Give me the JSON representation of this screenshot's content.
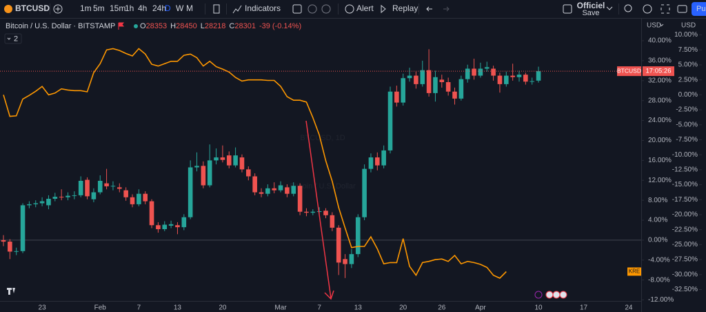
{
  "toolbar": {
    "symbol": "BTCUSD",
    "intervals": [
      "1m",
      "5m",
      "15m",
      "1h",
      "4h",
      "24h",
      "D",
      "W",
      "M"
    ],
    "active_interval": "D",
    "indicators": "Indicators",
    "alert": "Alert",
    "replay": "Replay",
    "layout_name": "Officiel",
    "layout_status": "Save",
    "publish": "Pu"
  },
  "chart_data": {
    "type": "candlestick",
    "title": "Bitcoin / U.S. Dollar · BITSTAMP",
    "ohlc_legend": [
      {
        "label": "O",
        "value": 28353
      },
      {
        "label": "H",
        "value": 28450
      },
      {
        "label": "L",
        "value": 28218
      },
      {
        "label": "C",
        "value": 28301
      }
    ],
    "change": "-39 (-0.14%)",
    "indicator_count": 2,
    "watermark": {
      "symbol": "BTCUSD, 1D",
      "description": "Bitcoin / U.S. Dollar"
    },
    "countdown": "17:05:26",
    "y_unit": "USD",
    "y2_unit": "USD",
    "grid": false,
    "up_color": "#26a69a",
    "down_color": "#ef5350",
    "categories": [
      null,
      null,
      null,
      null,
      null,
      null,
      "23",
      null,
      null,
      null,
      null,
      null,
      null,
      null,
      null,
      "Feb",
      null,
      null,
      null,
      null,
      null,
      "7",
      null,
      null,
      null,
      null,
      null,
      "13",
      null,
      null,
      null,
      null,
      null,
      null,
      "20",
      null,
      null,
      null,
      null,
      null,
      null,
      null,
      null,
      "Mar",
      null,
      null,
      null,
      null,
      null,
      "7",
      null,
      null,
      null,
      null,
      null,
      "13",
      null,
      null,
      null,
      null,
      null,
      null,
      "20",
      null,
      null,
      null,
      null,
      null,
      "26",
      null,
      null,
      null,
      null,
      null,
      "Apr",
      null,
      null,
      null,
      null,
      null,
      null,
      null,
      null,
      "10",
      null,
      null,
      null,
      null,
      null,
      null,
      "17",
      null,
      null,
      null,
      null,
      null,
      null,
      "24"
    ],
    "series": [
      {
        "name": "BTCUSD",
        "type": "candlestick",
        "color": "#ef5350",
        "open": [
          0,
          -0.3,
          -2.3,
          -2.2,
          7.0,
          7.2,
          7.4,
          7.0,
          8.3,
          8.7,
          8.6,
          8.9,
          9.0,
          12.1,
          8.2,
          9.6,
          11.4,
          10.8,
          10.6,
          10.0,
          8.6,
          7.2,
          9.3,
          7.8,
          3.0,
          2.2,
          2.9,
          3.0,
          2.6,
          4.6,
          14.6,
          14.9,
          11.0,
          16.0,
          16.6,
          17.0,
          15.0,
          16.6,
          14.2,
          12.8,
          9.6,
          9.3,
          10.4,
          10.0,
          10.6,
          9.3,
          10.9,
          5.7,
          5.5,
          5.7,
          5.9,
          5.0,
          2.5,
          -3.8,
          -4.8,
          -2.8,
          4.6,
          14.3,
          16.6,
          15.0,
          18.0,
          29.8,
          27.6,
          32.5,
          33.0,
          31.3,
          34.1,
          29.5,
          32.2,
          31.7,
          29.8,
          28.4,
          32.3,
          34.4,
          33.0,
          34.4,
          34.4,
          33.0,
          31.3,
          33.0,
          32.7,
          33.2,
          31.8,
          32.0,
          null,
          null,
          null,
          null,
          null,
          null,
          null,
          null,
          null,
          null,
          null,
          null,
          null,
          null
        ],
        "high": [
          1.0,
          0.2,
          -1.5,
          7.4,
          7.8,
          8.0,
          8.6,
          9.0,
          9.5,
          10.2,
          9.6,
          9.8,
          12.8,
          12.6,
          10.4,
          13.0,
          14.3,
          11.8,
          11.4,
          10.6,
          9.2,
          10.2,
          9.8,
          8.2,
          3.6,
          3.8,
          3.9,
          3.6,
          5.2,
          16.0,
          17.6,
          15.8,
          19.2,
          18.4,
          19.0,
          17.8,
          18.6,
          17.2,
          14.8,
          13.4,
          10.4,
          11.2,
          11.6,
          11.8,
          11.2,
          11.6,
          11.4,
          6.4,
          6.2,
          6.6,
          6.4,
          5.6,
          3.0,
          -2.8,
          -1.8,
          5.2,
          15.2,
          17.4,
          17.6,
          19.0,
          30.8,
          31.0,
          33.4,
          34.6,
          33.8,
          36.0,
          38.3,
          34.0,
          33.2,
          32.6,
          30.6,
          33.0,
          35.2,
          36.4,
          35.6,
          35.8,
          35.0,
          33.6,
          33.8,
          35.4,
          34.0,
          33.6,
          32.6,
          34.8,
          null,
          null,
          null,
          null,
          null,
          null,
          null,
          null,
          null,
          null,
          null,
          null,
          null,
          null
        ],
        "low": [
          -1.2,
          -3.8,
          -3.0,
          -2.6,
          6.4,
          6.6,
          6.8,
          6.2,
          7.8,
          8.0,
          8.0,
          8.2,
          8.6,
          8.2,
          7.6,
          9.2,
          10.2,
          10.0,
          9.6,
          7.9,
          6.6,
          6.8,
          7.2,
          2.4,
          1.5,
          1.8,
          2.4,
          1.2,
          2.0,
          4.2,
          13.8,
          10.4,
          10.6,
          15.2,
          15.6,
          14.4,
          14.6,
          13.6,
          12.0,
          9.0,
          8.6,
          8.8,
          9.4,
          9.6,
          8.6,
          8.8,
          5.0,
          4.8,
          5.0,
          5.2,
          4.4,
          1.8,
          -7.0,
          -7.6,
          -5.6,
          -3.4,
          4.0,
          13.6,
          14.0,
          14.4,
          17.4,
          26.8,
          27.0,
          31.8,
          30.4,
          30.8,
          28.8,
          27.8,
          30.6,
          29.0,
          27.2,
          28.0,
          31.6,
          32.2,
          32.6,
          33.8,
          32.0,
          29.6,
          30.8,
          32.0,
          31.8,
          31.2,
          31.2,
          31.6,
          null,
          null,
          null,
          null,
          null,
          null,
          null,
          null,
          null,
          null,
          null,
          null,
          null,
          null
        ],
        "close": [
          -0.3,
          -2.3,
          -2.2,
          7.0,
          7.2,
          7.4,
          7.8,
          8.3,
          8.7,
          8.6,
          8.9,
          9.0,
          11.9,
          8.8,
          9.6,
          11.9,
          10.8,
          10.9,
          10.3,
          8.6,
          7.2,
          9.3,
          7.8,
          3.0,
          2.2,
          3.1,
          3.2,
          2.6,
          4.6,
          14.6,
          14.9,
          11.0,
          16.0,
          16.6,
          16.1,
          15.0,
          17.0,
          14.2,
          12.8,
          9.6,
          9.3,
          10.4,
          10.0,
          11.0,
          9.3,
          10.9,
          5.7,
          5.5,
          5.7,
          5.8,
          5.0,
          2.5,
          -4.5,
          -4.8,
          -2.8,
          4.6,
          14.3,
          16.6,
          15.0,
          18.0,
          29.8,
          27.6,
          32.5,
          33.0,
          31.3,
          34.1,
          29.5,
          32.7,
          31.7,
          29.8,
          28.4,
          32.3,
          34.4,
          33.0,
          34.4,
          34.7,
          33.0,
          31.3,
          33.0,
          32.7,
          33.2,
          31.8,
          31.9,
          33.9,
          null,
          null,
          null,
          null,
          null,
          null,
          null,
          null,
          null,
          null,
          null,
          null,
          null,
          null
        ]
      },
      {
        "name": "KRE",
        "type": "line",
        "color": "#ff9800",
        "axis": "y2",
        "values": [
          0,
          -3.6,
          -3.5,
          -0.7,
          -0.1,
          0.6,
          1.4,
          0,
          0.3,
          1.0,
          0.8,
          0.7,
          0.7,
          0.5,
          3.7,
          5.2,
          7.5,
          7.7,
          7.4,
          6.9,
          6.5,
          7.7,
          6.8,
          5.1,
          4.8,
          5.2,
          5.6,
          5.6,
          6.6,
          6.8,
          6.2,
          4.8,
          5.6,
          4.7,
          4.3,
          3.8,
          2.9,
          2.3,
          2.5,
          2.5,
          2.5,
          2.4,
          2.4,
          1.4,
          -0.3,
          -0.9,
          -0.9,
          -1.2,
          -3.8,
          -6.7,
          -11.0,
          -14.4,
          -18.8,
          -22.2,
          -25.5,
          -25.3,
          -25.3,
          -23.7,
          -25.7,
          -28.2,
          -28.0,
          -28.0,
          -24.0,
          -28.6,
          -30.1,
          -28.0,
          -27.8,
          -27.5,
          -27.4,
          -27.8,
          -26.8,
          -28.2,
          -27.8,
          -28.0,
          -28.3,
          -28.8,
          -30.1,
          -30.6,
          -29.5,
          null,
          null,
          null,
          null,
          null,
          null,
          null,
          null,
          null,
          null,
          null,
          null,
          null,
          null,
          null,
          null,
          null,
          null,
          null
        ]
      }
    ],
    "ylim": [
      -12.2,
      44.3
    ],
    "yticks": [
      {
        "value": 40,
        "label": "40.00%"
      },
      {
        "value": 36,
        "label": "36.00%"
      },
      {
        "value": 32,
        "label": "32.00%"
      },
      {
        "value": 28,
        "label": "28.00%"
      },
      {
        "value": 24,
        "label": "24.00%"
      },
      {
        "value": 20,
        "label": "20.00%"
      },
      {
        "value": 16,
        "label": "16.00%"
      },
      {
        "value": 12,
        "label": "12.00%"
      },
      {
        "value": 8,
        "label": "8.00%"
      },
      {
        "value": 4,
        "label": "4.00%"
      },
      {
        "value": 0,
        "label": "0.00%"
      },
      {
        "value": -4,
        "label": "-4.00%"
      },
      {
        "value": -8,
        "label": "-8.00%"
      },
      {
        "value": -12,
        "label": "-12.00%"
      }
    ],
    "y2lim": [
      -34.4,
      12.6
    ],
    "y2ticks": [
      {
        "value": 10,
        "label": "10.00%"
      },
      {
        "value": 7.5,
        "label": "7.50%"
      },
      {
        "value": 5,
        "label": "5.00%"
      },
      {
        "value": 2.5,
        "label": "2.50%"
      },
      {
        "value": 0,
        "label": "0.00%"
      },
      {
        "value": -2.5,
        "label": "-2.50%"
      },
      {
        "value": -5,
        "label": "-5.00%"
      },
      {
        "value": -7.5,
        "label": "-7.50%"
      },
      {
        "value": -10,
        "label": "-10.00%"
      },
      {
        "value": -12.5,
        "label": "-12.50%"
      },
      {
        "value": -15,
        "label": "-15.00%"
      },
      {
        "value": -17.5,
        "label": "-17.50%"
      },
      {
        "value": -20,
        "label": "-20.00%"
      },
      {
        "value": -22.5,
        "label": "-22.50%"
      },
      {
        "value": -25,
        "label": "-25.00%"
      },
      {
        "value": -27.5,
        "label": "-27.50%"
      },
      {
        "value": -30,
        "label": "-30.00%"
      },
      {
        "value": -32.5,
        "label": "-32.50%"
      }
    ]
  }
}
